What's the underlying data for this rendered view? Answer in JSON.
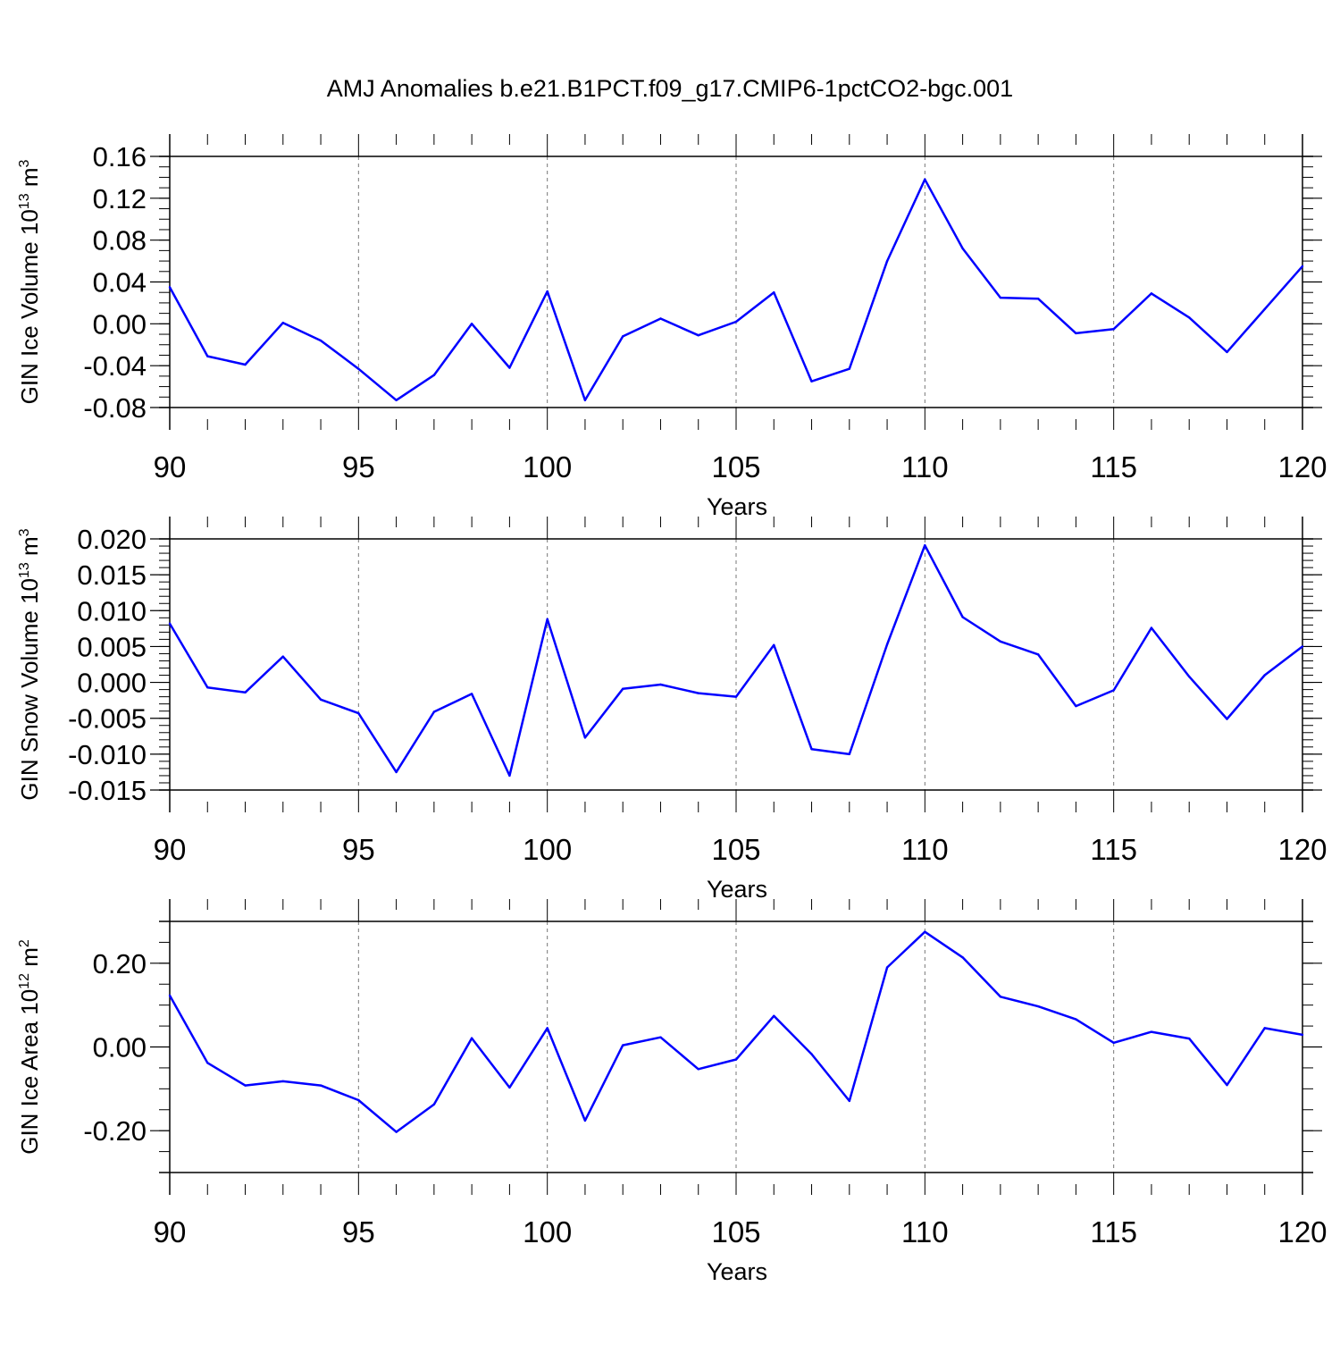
{
  "figure": {
    "title": "AMJ Anomalies b.e21.B1PCT.f09_g17.CMIP6-1pctCO2-bgc.001",
    "line_color": "#0000ff"
  },
  "chart_data": [
    {
      "type": "line",
      "xlabel": "Years",
      "ylabel": {
        "text": "GIN Ice Volume 10",
        "sup1": "13",
        "mid": " m",
        "sup2": "3"
      },
      "xlim": [
        90,
        120
      ],
      "ylim": [
        -0.08,
        0.16
      ],
      "xticks": [
        90,
        95,
        100,
        105,
        110,
        115,
        120
      ],
      "yticks": [
        "0.16",
        "0.12",
        "0.08",
        "0.04",
        "0.00",
        "-0.04",
        "-0.08"
      ],
      "ytick_values": [
        0.16,
        0.12,
        0.08,
        0.04,
        0.0,
        -0.04,
        -0.08
      ],
      "grid_x_dashed": [
        95,
        100,
        105,
        110,
        115
      ],
      "x": [
        90,
        91,
        92,
        93,
        94,
        95,
        96,
        97,
        98,
        99,
        100,
        101,
        102,
        103,
        104,
        105,
        106,
        107,
        108,
        109,
        110,
        111,
        112,
        113,
        114,
        115,
        116,
        117,
        118,
        119,
        120
      ],
      "values": [
        0.035,
        -0.031,
        -0.039,
        0.001,
        -0.016,
        -0.043,
        -0.073,
        -0.049,
        0.0,
        -0.042,
        0.031,
        -0.073,
        -0.012,
        0.005,
        -0.011,
        0.002,
        0.03,
        -0.055,
        -0.043,
        0.06,
        0.138,
        0.072,
        0.025,
        0.024,
        -0.009,
        -0.005,
        0.029,
        0.006,
        -0.027,
        0.014,
        0.055
      ]
    },
    {
      "type": "line",
      "xlabel": "Years",
      "ylabel": {
        "text": "GIN Snow Volume 10",
        "sup1": "13",
        "mid": " m",
        "sup2": "3"
      },
      "xlim": [
        90,
        120
      ],
      "ylim": [
        -0.015,
        0.02
      ],
      "xticks": [
        90,
        95,
        100,
        105,
        110,
        115,
        120
      ],
      "yticks": [
        "0.020",
        "0.015",
        "0.010",
        "0.005",
        "0.000",
        "-0.005",
        "-0.010",
        "-0.015"
      ],
      "ytick_values": [
        0.02,
        0.015,
        0.01,
        0.005,
        0.0,
        -0.005,
        -0.01,
        -0.015
      ],
      "grid_x_dashed": [
        95,
        100,
        105,
        110,
        115
      ],
      "x": [
        90,
        91,
        92,
        93,
        94,
        95,
        96,
        97,
        98,
        99,
        100,
        101,
        102,
        103,
        104,
        105,
        106,
        107,
        108,
        109,
        110,
        111,
        112,
        113,
        114,
        115,
        116,
        117,
        118,
        119,
        120
      ],
      "values": [
        0.0082,
        -0.0007,
        -0.0014,
        0.0036,
        -0.0024,
        -0.0043,
        -0.0125,
        -0.0041,
        -0.0016,
        -0.013,
        0.0088,
        -0.0077,
        -0.0009,
        -0.0003,
        -0.0015,
        -0.002,
        0.0052,
        -0.0093,
        -0.01,
        0.0053,
        0.0191,
        0.0091,
        0.0057,
        0.0039,
        -0.0033,
        -0.0011,
        0.0076,
        0.0008,
        -0.0051,
        0.001,
        0.005
      ]
    },
    {
      "type": "line",
      "xlabel": "Years",
      "ylabel": {
        "text": "GIN Ice Area 10",
        "sup1": "12",
        "mid": " m",
        "sup2": "2"
      },
      "xlim": [
        90,
        120
      ],
      "ylim": [
        -0.3,
        0.3
      ],
      "xticks": [
        90,
        95,
        100,
        105,
        110,
        115,
        120
      ],
      "yticks": [
        "0.20",
        "0.00",
        "-0.20"
      ],
      "ytick_values": [
        0.2,
        0.0,
        -0.2
      ],
      "grid_x_dashed": [
        95,
        100,
        105,
        110,
        115
      ],
      "x": [
        90,
        91,
        92,
        93,
        94,
        95,
        96,
        97,
        98,
        99,
        100,
        101,
        102,
        103,
        104,
        105,
        106,
        107,
        108,
        109,
        110,
        111,
        112,
        113,
        114,
        115,
        116,
        117,
        118,
        119,
        120
      ],
      "values": [
        0.123,
        -0.038,
        -0.092,
        -0.082,
        -0.092,
        -0.127,
        -0.203,
        -0.137,
        0.021,
        -0.097,
        0.045,
        -0.176,
        0.004,
        0.023,
        -0.053,
        -0.03,
        0.074,
        -0.017,
        -0.129,
        0.19,
        0.275,
        0.214,
        0.12,
        0.097,
        0.066,
        0.01,
        0.036,
        0.02,
        -0.091,
        0.045,
        0.029
      ]
    }
  ]
}
